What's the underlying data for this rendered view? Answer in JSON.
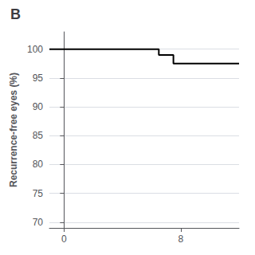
{
  "chart_data": {
    "type": "line",
    "title": "B",
    "ylabel": "Recurrence-free eyes (%)",
    "x": [
      -1,
      6.5,
      6.5,
      7.5,
      7.5,
      12
    ],
    "values": [
      100,
      100,
      99.0,
      99.0,
      97.5,
      97.5
    ],
    "color": "#000000",
    "xlim": [
      -1,
      12
    ],
    "ylim": [
      69,
      103
    ],
    "xticks": [
      0,
      8
    ],
    "yticks": [
      70,
      75,
      80,
      85,
      90,
      95,
      100
    ],
    "grid": "y"
  }
}
